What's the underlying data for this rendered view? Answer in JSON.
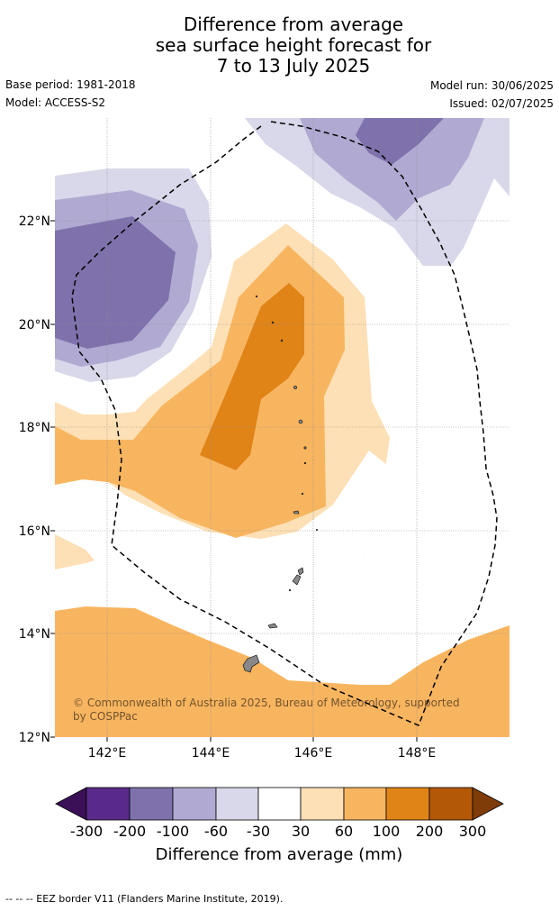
{
  "header": {
    "title_lines": [
      "Difference from average",
      "sea surface height forecast for",
      "7 to 13 July 2025"
    ],
    "base_period": "Base period: 1981-2018",
    "model": "Model: ACCESS-S2",
    "model_run": "Model run: 30/06/2025",
    "issued": "Issued: 02/07/2025"
  },
  "map": {
    "lat_labels": [
      "22°N",
      "20°N",
      "18°N",
      "16°N",
      "14°N",
      "12°N"
    ],
    "lon_labels": [
      "142°E",
      "144°E",
      "146°E",
      "148°E"
    ],
    "copyright": [
      "© Commonwealth of Australia 2025, Bureau of Meteorology, supported",
      "by COSPPac"
    ],
    "border_style": "dashed"
  },
  "colorbar": {
    "ticks": [
      "-300",
      "-200",
      "-100",
      "-60",
      "-30",
      "30",
      "60",
      "100",
      "200",
      "300"
    ],
    "colors": [
      "#3b1057",
      "#5a2a8a",
      "#7f72ac",
      "#b0aad2",
      "#d8d8ea",
      "#ffffff",
      "#fde0b5",
      "#f8b560",
      "#e08418",
      "#b35806",
      "#7f3b08"
    ],
    "label": "Difference from average (mm)"
  },
  "footer": {
    "legend_text": "--  --  -- EEZ border V11 (Flanders Marine Institute, 2019)."
  }
}
